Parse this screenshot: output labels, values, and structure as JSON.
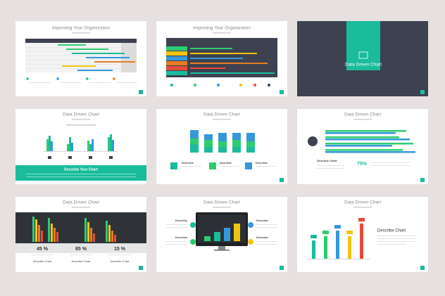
{
  "slides": [
    {
      "title": "Improving Your Organization"
    },
    {
      "title": "Improving Your Organization"
    },
    {
      "title": "Data Driven Chart"
    },
    {
      "title": "Data Driven Chart",
      "banner": "Describe Your Chart"
    },
    {
      "title": "Data Driven Chart",
      "items": [
        "Describe",
        "Describe",
        "Describe"
      ]
    },
    {
      "title": "Data Driven Chart",
      "heading": "Describe Chart",
      "stat": "75%"
    },
    {
      "title": "Data Driven Chart",
      "stats": [
        {
          "value": "45 %",
          "label": "Describe Chart"
        },
        {
          "value": "85 %",
          "label": "Describe Chart"
        },
        {
          "value": "15 %",
          "label": "Describe Chart"
        }
      ]
    },
    {
      "title": "Data Driven Chart",
      "items": [
        "Describe",
        "Describe",
        "Describe",
        "Describe"
      ]
    },
    {
      "title": "Data Driven Chart",
      "heading": "Describe Chart"
    }
  ]
}
